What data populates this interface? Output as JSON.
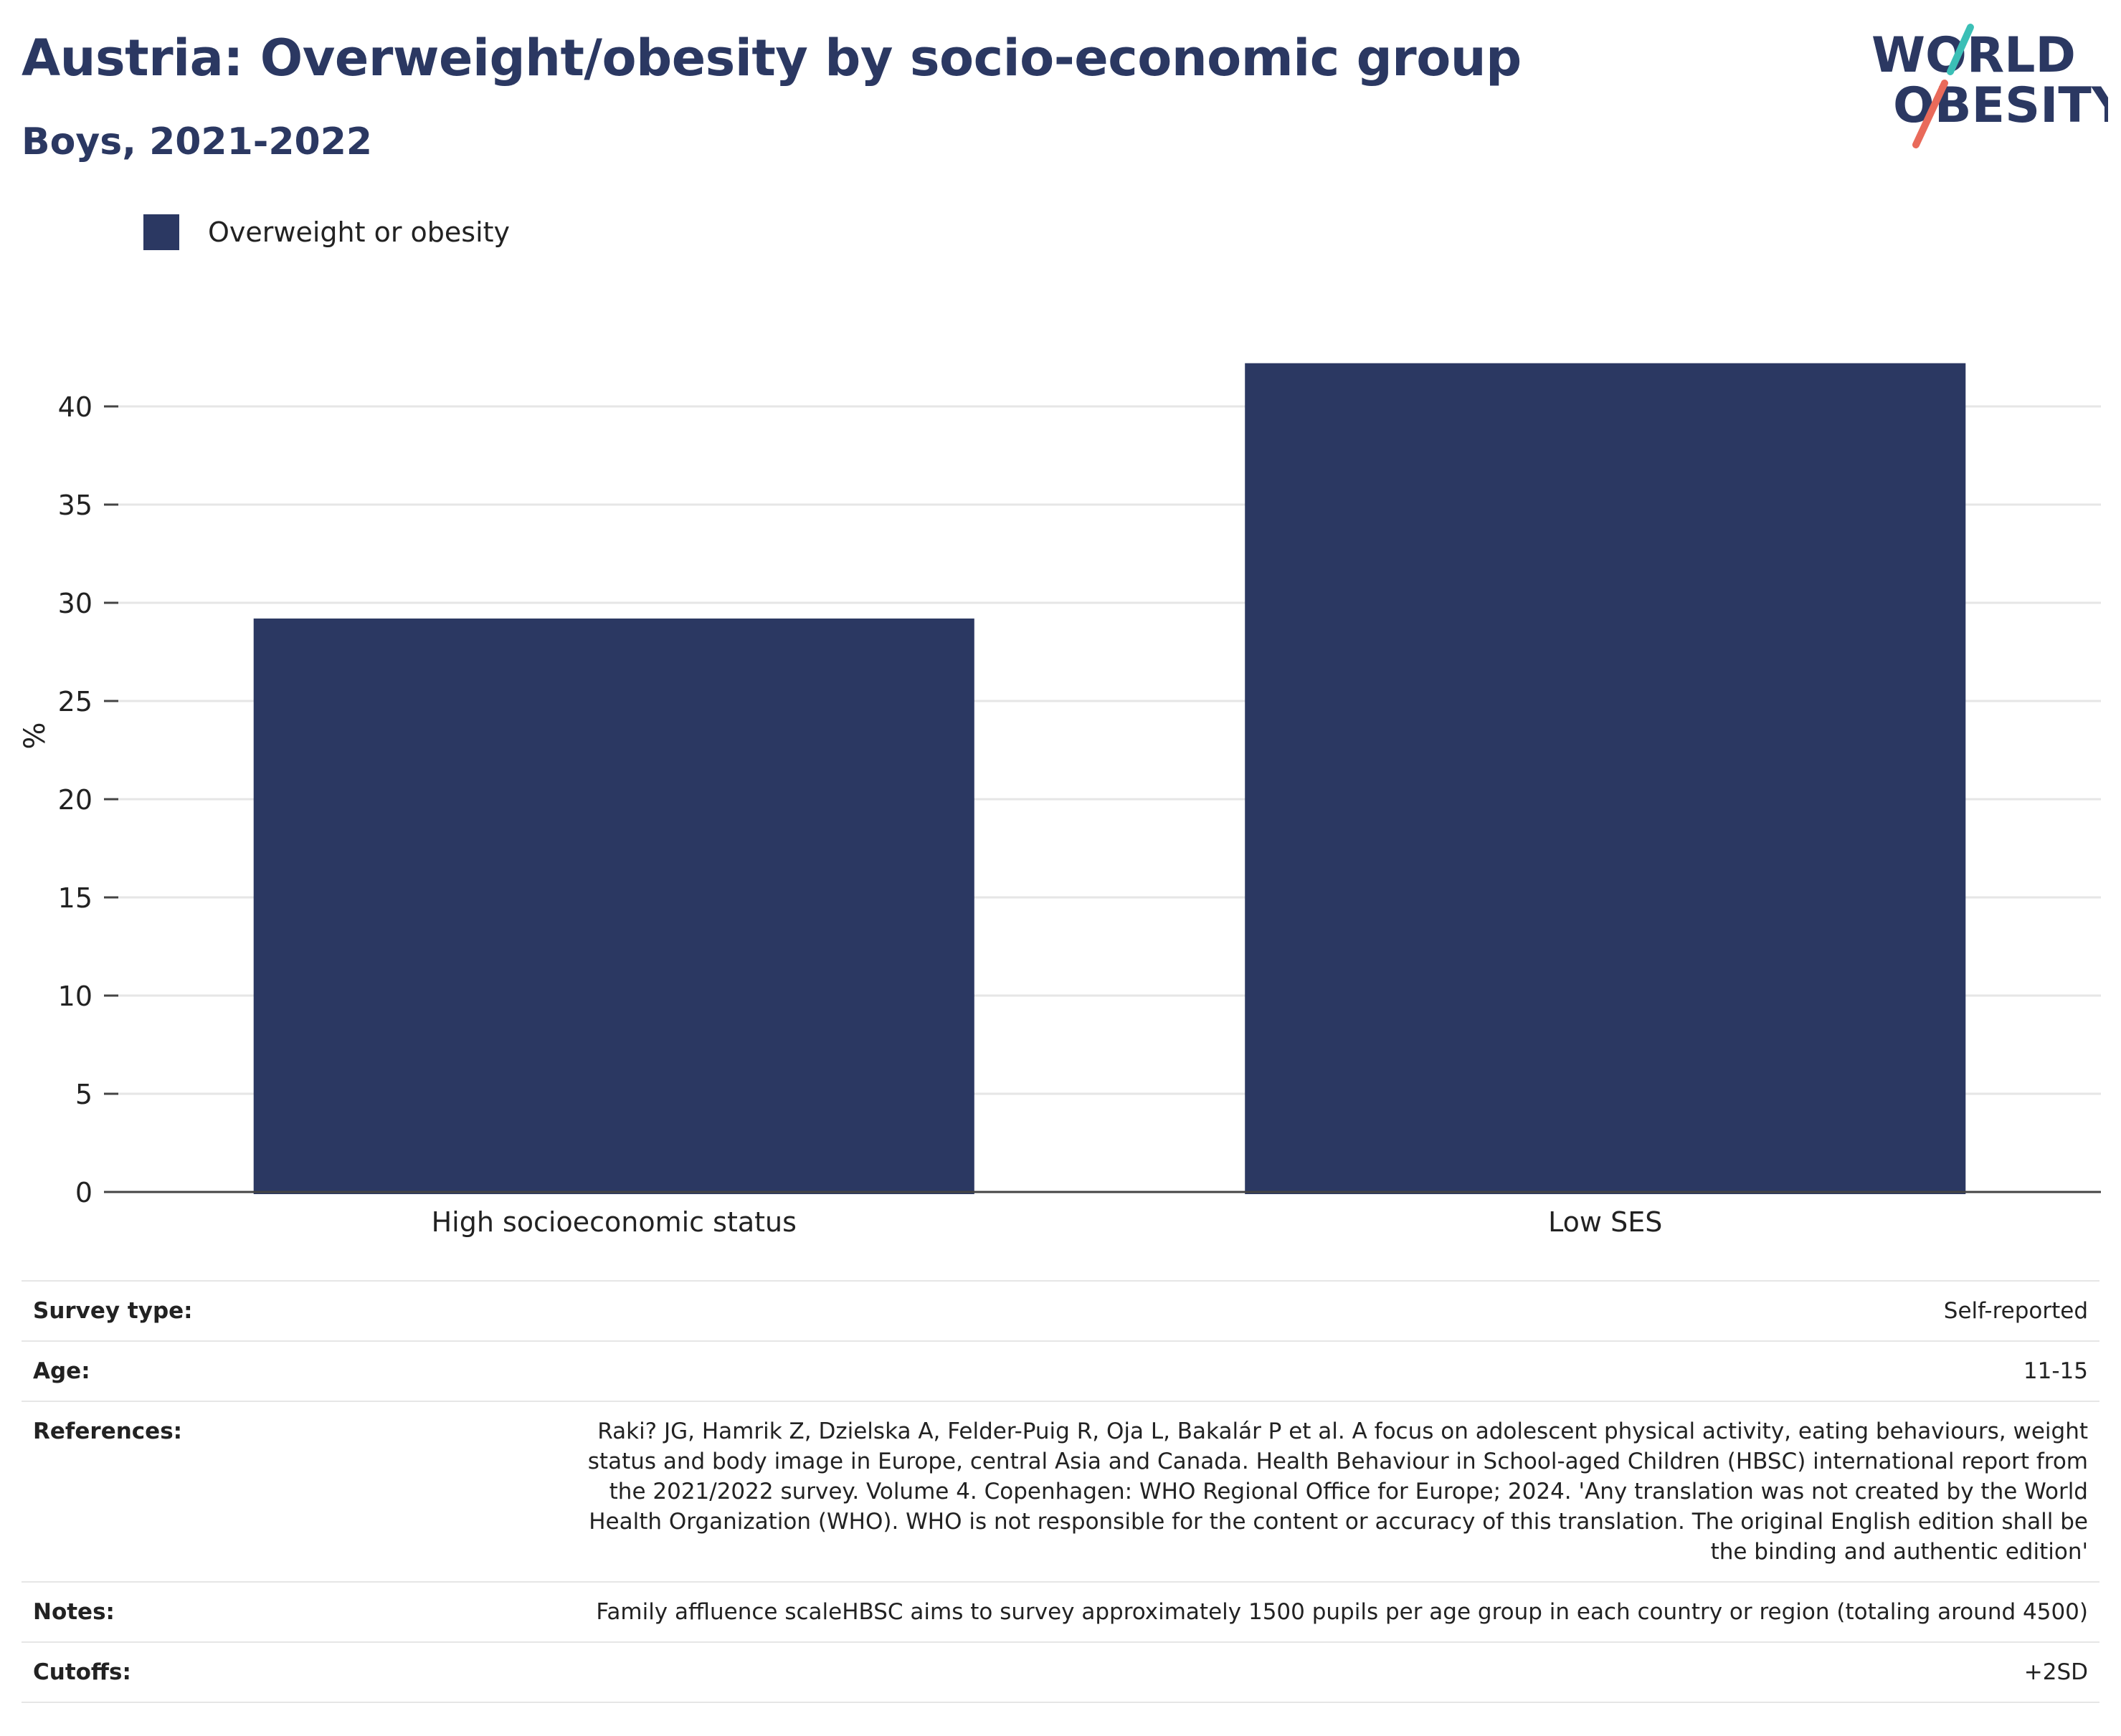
{
  "header": {
    "title": "Austria: Overweight/obesity by socio-economic group",
    "subtitle": "Boys, 2021-2022"
  },
  "logo": {
    "line1": "WORLD",
    "line2": "OBESITY",
    "colors": {
      "text": "#2b3862",
      "slash_teal": "#3bbfb6",
      "slash_coral": "#e96a5a"
    }
  },
  "legend": {
    "items": [
      {
        "label": "Overweight or obesity",
        "color": "#2b3862"
      }
    ]
  },
  "chart_data": {
    "type": "bar",
    "categories": [
      "High socioeconomic status",
      "Low SES"
    ],
    "series": [
      {
        "name": "Overweight or obesity",
        "values": [
          29.2,
          42.2
        ],
        "color": "#2b3862"
      }
    ],
    "ylabel": "%",
    "xlabel": "",
    "ylim": [
      0,
      45
    ],
    "yticks": [
      0,
      5,
      10,
      15,
      20,
      25,
      30,
      35,
      40
    ],
    "grid": true,
    "legend_position": "top-left"
  },
  "info": {
    "rows": [
      {
        "label": "Survey type:",
        "value": "Self-reported"
      },
      {
        "label": "Age:",
        "value": "11-15"
      },
      {
        "label": "References:",
        "value": "Raki? JG, Hamrik Z, Dzielska A, Felder-Puig R, Oja L, Bakalár P et al. A focus on adolescent physical activity, eating behaviours, weight status and body image in Europe, central Asia and Canada. Health Behaviour in School-aged Children (HBSC) international report from the 2021/2022 survey. Volume 4. Copenhagen: WHO Regional Office for Europe; 2024. 'Any translation was not created by the World Health Organization (WHO). WHO is not responsible for the content or accuracy of this translation. The original English edition shall be the binding and authentic edition'"
      },
      {
        "label": "Notes:",
        "value": "Family affluence scaleHBSC aims to survey approximately 1500 pupils per age group in each country or region (totaling around 4500)"
      },
      {
        "label": "Cutoffs:",
        "value": "+2SD"
      }
    ]
  }
}
